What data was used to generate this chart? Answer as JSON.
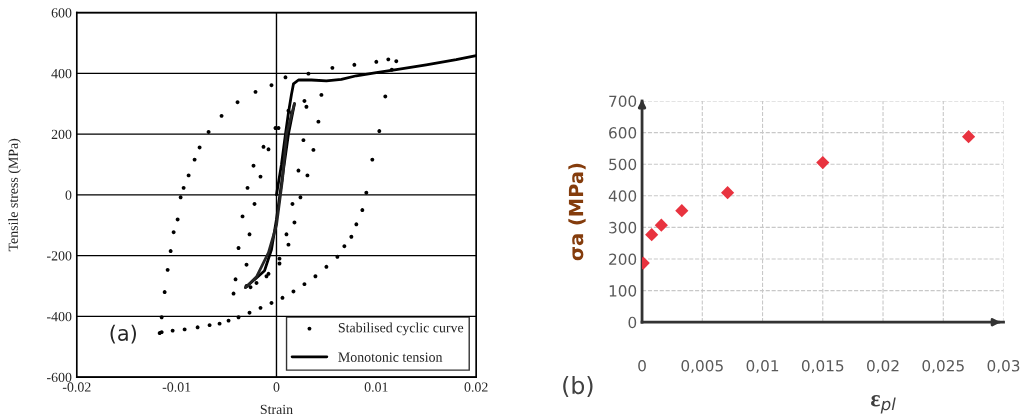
{
  "chart_data": [
    {
      "type": "scatter",
      "xlabel": "Strain",
      "ylabel": "Tensile stress (MPa)",
      "xlim": [
        -0.02,
        0.02
      ],
      "ylim": [
        -600,
        600
      ],
      "xticks": [
        -0.02,
        -0.01,
        0,
        0.01,
        0.02
      ],
      "yticks": [
        -600,
        -400,
        -200,
        0,
        200,
        400,
        600
      ],
      "grid": "y",
      "legend": "bottom right",
      "annotations": [
        "(a)"
      ],
      "ref_lines": [
        {
          "axis": "x",
          "value": 0,
          "color": "#000000"
        }
      ],
      "series": [
        {
          "name": "Stabilised cyclic curve",
          "type": "scatter",
          "color": "#000000",
          "marker": "circle",
          "x": [
            0.012,
            0.01155,
            0.0109,
            0.0103,
            0.0096,
            0.009,
            0.0086,
            0.008,
            0.0075,
            0.0068,
            0.0061,
            0.005,
            0.0039,
            0.0028,
            0.0017,
            0.0006,
            -0.0005,
            -0.0016,
            -0.0027,
            -0.0038,
            -0.0048,
            -0.0057,
            -0.0067,
            -0.0079,
            -0.0092,
            -0.0104,
            -0.0115,
            -0.0117,
            -0.0115,
            -0.0112,
            -0.0109,
            -0.0106,
            -0.0103,
            -0.0099,
            -0.0096,
            -0.0093,
            -0.0088,
            -0.0082,
            -0.0077,
            -0.0068,
            -0.0055,
            -0.0039,
            -0.0021,
            -0.0005,
            0.0009,
            0.0032,
            0.0056,
            0.0078,
            0.01,
            0.0112,
            0.0045,
            0.0042,
            0.0037,
            0.0031,
            0.0024,
            0.0018,
            0.0012,
            0.0003,
            -0.001,
            -0.0026,
            -0.0043,
            -0.0041,
            -0.0038,
            -0.0034,
            -0.0029,
            -0.0023,
            -0.0013,
            -0.0001,
            0.0012,
            0.0028,
            0.003,
            0.0027,
            0.0022,
            0.0016,
            0.001,
            0.0003,
            -0.0008,
            -0.002,
            -0.003,
            -0.003,
            -0.0027,
            -0.0022,
            -0.0016,
            -0.0008,
            0.0002,
            0.0015
          ],
          "values": [
            440,
            412,
            324,
            210,
            116,
            7,
            -50,
            -97,
            -138,
            -169,
            -204,
            -237,
            -268,
            -294,
            -318,
            -339,
            -356,
            -372,
            -388,
            -403,
            -414,
            -424,
            -429,
            -436,
            -443,
            -447,
            -452,
            -455,
            -403,
            -320,
            -247,
            -185,
            -123,
            -81,
            -8,
            23,
            64,
            116,
            156,
            207,
            260,
            305,
            339,
            361,
            387,
            399,
            418,
            428,
            438,
            446,
            329,
            241,
            148,
            64,
            -8,
            -91,
            -164,
            -226,
            -268,
            -304,
            -325,
            -278,
            -175,
            -71,
            23,
            96,
            158,
            220,
            277,
            309,
            290,
            180,
            80,
            -30,
            -130,
            -210,
            -260,
            -290,
            -300,
            -230,
            -130,
            -30,
            60,
            150,
            220,
            270
          ]
        },
        {
          "name": "Monotonic tension",
          "type": "line",
          "color": "#000000",
          "line_style": "solid",
          "x": [
            0,
            0.0005,
            0.0009,
            0.0012,
            0.0015,
            0.0017,
            0.0022,
            0.0035,
            0.005,
            0.0065,
            0.008,
            0.01,
            0.012,
            0.015,
            0.018,
            0.02
          ],
          "values": [
            0,
            100,
            200,
            270,
            330,
            365,
            378,
            378,
            375,
            380,
            392,
            402,
            412,
            428,
            445,
            458
          ]
        },
        {
          "type": "line",
          "color": "#000000",
          "line_style": "solid",
          "x": [
            0.0018,
            0.0012,
            0.0006,
            0.0,
            -0.0005,
            -0.0012,
            -0.0031
          ],
          "values": [
            300,
            200,
            60,
            -80,
            -180,
            -250,
            -305
          ]
        },
        {
          "type": "line",
          "color": "#262626",
          "line_style": "solid",
          "x": [
            -0.0031,
            -0.002,
            -0.0008,
            0.0,
            0.0006,
            0.001,
            0.0018
          ],
          "values": [
            -305,
            -270,
            -190,
            -100,
            50,
            200,
            300
          ]
        }
      ]
    },
    {
      "type": "scatter",
      "xlabel": "ε$_{pl}$",
      "ylabel": "σa (MPa)",
      "xlim": [
        0,
        0.03
      ],
      "ylim": [
        0,
        700
      ],
      "xticks": [
        0,
        {
          "value": 0.005,
          "label": "0,005"
        },
        {
          "value": 0.01,
          "label": "0,01"
        },
        {
          "value": 0.015,
          "label": "0,015"
        },
        {
          "value": 0.02,
          "label": "0,02"
        },
        {
          "value": 0.025,
          "label": "0,025"
        },
        {
          "value": 0.03,
          "label": "0,03"
        }
      ],
      "yticks": [
        0,
        100,
        200,
        300,
        400,
        500,
        600,
        700
      ],
      "grid": true,
      "annotations": [
        "(b)"
      ],
      "series": [
        {
          "type": "scatter",
          "color": "#e8333f",
          "marker": "diamond",
          "x": [
            0.0001,
            0.0008,
            0.0016,
            0.0033,
            0.0071,
            0.015,
            0.0271
          ],
          "values": [
            187,
            277,
            307,
            353,
            410,
            505,
            587
          ]
        }
      ]
    }
  ]
}
